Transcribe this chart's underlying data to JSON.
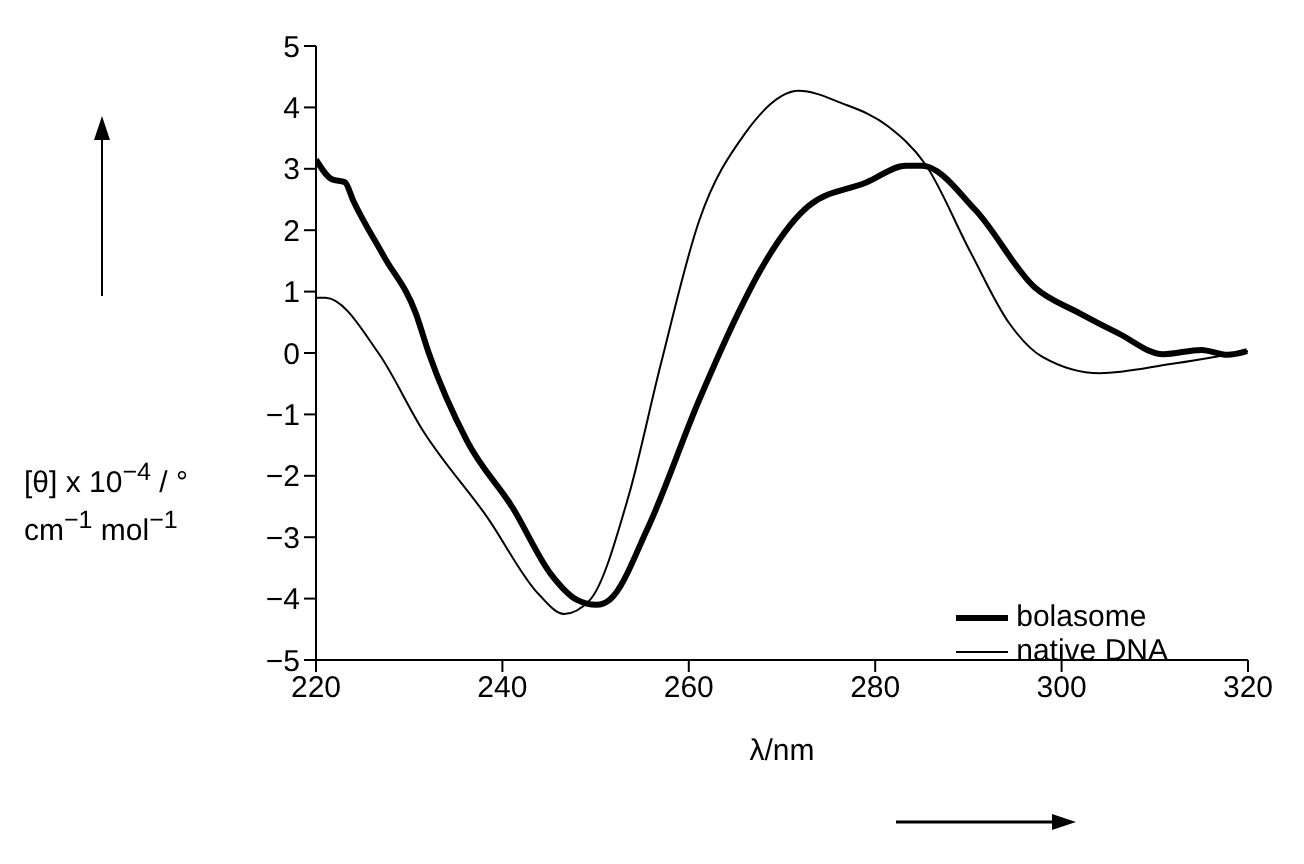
{
  "chart_data": {
    "type": "line",
    "xlabel": "λ/nm",
    "ylabel": "[θ] x 10$^{−4}$ / ° cm$^{−1}$ mol$^{−1}$",
    "xlim": [
      220,
      320
    ],
    "xticks": [
      220,
      240,
      260,
      280,
      300,
      320
    ],
    "ylim": [
      -5,
      5
    ],
    "yticks": [
      -5,
      -4,
      -3,
      -2,
      -1,
      0,
      1,
      2,
      3,
      4,
      5
    ],
    "legend": "bottom right",
    "marker": "none",
    "line_style": "solid",
    "series": [
      {
        "name": "bolasome",
        "color": "#000000",
        "x": [
          220,
          221.7,
          223.1,
          224,
          227.3,
          230.7,
          232.1,
          236.2,
          241.1,
          245.2,
          248,
          250.1,
          251.5,
          255.6,
          261.1,
          265.3,
          267.5,
          272.9,
          279.1,
          283.3,
          285,
          290.8,
          297.1,
          301.9,
          306.1,
          310.9,
          315,
          317.8,
          319.9
        ],
        "values": [
          3.15,
          2.83,
          2.78,
          2.48,
          1.57,
          0.65,
          0,
          -1.43,
          -2.52,
          -3.6,
          -4.02,
          -4.1,
          -4.02,
          -2.85,
          -0.77,
          0.65,
          1.3,
          2.4,
          2.78,
          3.05,
          3.05,
          2.32,
          1.07,
          0.65,
          0.32,
          -0.02,
          0.05,
          -0.03,
          0.03
        ]
      },
      {
        "name": "native DNA",
        "color": "#000000",
        "x": [
          220,
          221,
          226.7,
          231.5,
          238.4,
          243.9,
          246.6,
          249.4,
          253.5,
          257,
          261.1,
          266,
          271.8,
          276.4,
          281.3,
          285.4,
          290.2,
          294.4,
          297.9,
          304.1,
          311.7,
          320
        ],
        "values": [
          0.9,
          0.9,
          0,
          -1.27,
          -2.68,
          -3.93,
          -4.25,
          -4.02,
          -2.35,
          -0.18,
          2.15,
          3.57,
          4.27,
          4.07,
          3.7,
          3.07,
          1.65,
          0.48,
          -0.06,
          -0.33,
          -0.18,
          0.03
        ]
      }
    ]
  }
}
